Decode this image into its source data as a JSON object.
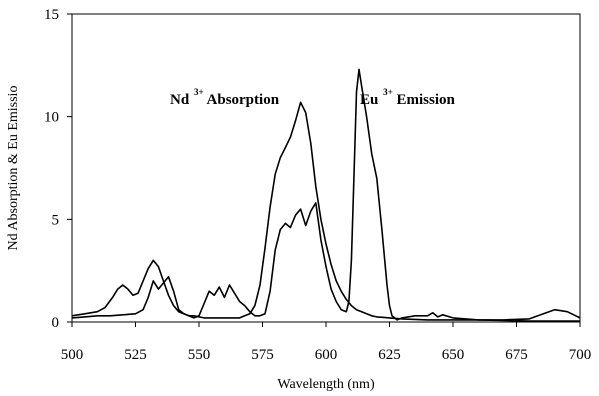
{
  "chart_data": {
    "type": "line",
    "title": "",
    "xlabel": "Wavelength (nm)",
    "ylabel": "Nd Absorption & Eu Emissio",
    "xlim": [
      500,
      700
    ],
    "ylim": [
      0,
      15
    ],
    "xticks": [
      "500",
      "525",
      "550",
      "575",
      "600",
      "625",
      "650",
      "675",
      "700"
    ],
    "yticks": [
      "0",
      "5",
      "10",
      "15"
    ],
    "grid": false,
    "legend": "none",
    "annotations": [
      {
        "base": "Nd",
        "sup": "3+",
        "text": " Absorption"
      },
      {
        "base": "Eu",
        "sup": "3+",
        "text": " Emission"
      }
    ],
    "series": [
      {
        "x": [
          500,
          505,
          510,
          513,
          516,
          518,
          520,
          522,
          524,
          526,
          528,
          530,
          532,
          534,
          536,
          538,
          540,
          542,
          544,
          546,
          548,
          550,
          552,
          554,
          556,
          558,
          560,
          562,
          564,
          566,
          568,
          570,
          572,
          574,
          576,
          578,
          580,
          582,
          584,
          586,
          588,
          590,
          592,
          594,
          596,
          598,
          600,
          602,
          604,
          606,
          608,
          610,
          612,
          614,
          616,
          618,
          620,
          625,
          630,
          640,
          650,
          660,
          670,
          680,
          690,
          695,
          700
        ],
        "y": [
          0.3,
          0.4,
          0.5,
          0.7,
          1.2,
          1.6,
          1.8,
          1.6,
          1.3,
          1.4,
          2.0,
          2.6,
          3.0,
          2.7,
          2.0,
          1.3,
          0.8,
          0.5,
          0.4,
          0.3,
          0.3,
          0.25,
          0.2,
          0.2,
          0.2,
          0.2,
          0.2,
          0.2,
          0.2,
          0.2,
          0.3,
          0.4,
          0.8,
          1.8,
          3.6,
          5.6,
          7.2,
          8.0,
          8.5,
          9.0,
          9.8,
          10.7,
          10.2,
          8.7,
          6.6,
          5.0,
          3.8,
          2.8,
          2.0,
          1.5,
          1.1,
          0.8,
          0.6,
          0.5,
          0.4,
          0.3,
          0.25,
          0.2,
          0.15,
          0.1,
          0.1,
          0.1,
          0.1,
          0.15,
          0.6,
          0.5,
          0.2
        ]
      },
      {
        "x": [
          500,
          505,
          510,
          515,
          520,
          525,
          528,
          530,
          532,
          534,
          536,
          538,
          540,
          542,
          544,
          546,
          548,
          550,
          552,
          554,
          556,
          558,
          560,
          562,
          564,
          566,
          568,
          570,
          572,
          574,
          576,
          578,
          580,
          582,
          584,
          586,
          588,
          590,
          592,
          594,
          596,
          598,
          600,
          602,
          604,
          606,
          608,
          609,
          610,
          611,
          612,
          613,
          614,
          616,
          618,
          620,
          622,
          624,
          625,
          626,
          628,
          630,
          635,
          640,
          642,
          644,
          646,
          650,
          660,
          680,
          700
        ],
        "y": [
          0.2,
          0.25,
          0.3,
          0.3,
          0.35,
          0.4,
          0.6,
          1.2,
          2.0,
          1.6,
          1.9,
          2.2,
          1.5,
          0.6,
          0.4,
          0.3,
          0.2,
          0.3,
          0.9,
          1.5,
          1.3,
          1.7,
          1.2,
          1.8,
          1.4,
          1.0,
          0.8,
          0.5,
          0.3,
          0.3,
          0.4,
          1.5,
          3.5,
          4.5,
          4.8,
          4.6,
          5.2,
          5.5,
          4.7,
          5.4,
          5.8,
          4.0,
          2.7,
          1.6,
          1.0,
          0.6,
          0.5,
          1.0,
          3.0,
          7.0,
          11.2,
          12.3,
          11.5,
          10.0,
          8.2,
          7.0,
          4.5,
          1.8,
          0.8,
          0.3,
          0.1,
          0.2,
          0.3,
          0.3,
          0.45,
          0.25,
          0.35,
          0.2,
          0.1,
          0.05,
          0.05
        ]
      }
    ]
  }
}
